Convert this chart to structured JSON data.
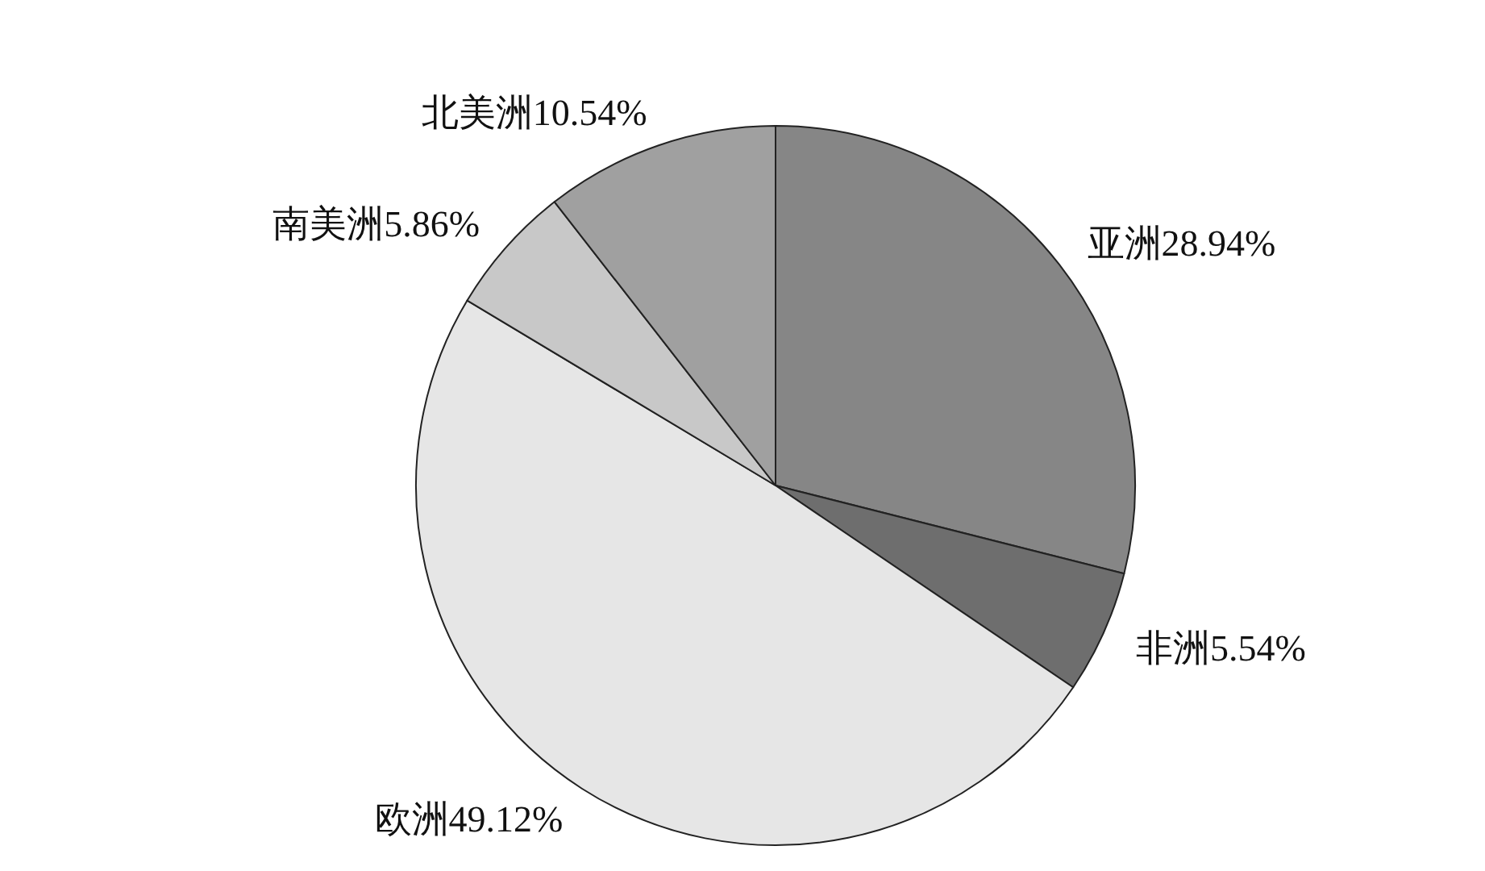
{
  "chart_data": {
    "type": "pie",
    "categories": [
      "亚洲",
      "非洲",
      "欧洲",
      "南美洲",
      "北美洲"
    ],
    "values": [
      28.94,
      5.54,
      49.12,
      5.86,
      10.54
    ],
    "value_labels": [
      "28.94%",
      "5.54%",
      "49.12%",
      "5.86%",
      "10.54%"
    ],
    "colors": [
      "#868686",
      "#6e6e6e",
      "#e6e6e6",
      "#c8c8c8",
      "#a0a0a0"
    ],
    "legend": false
  }
}
